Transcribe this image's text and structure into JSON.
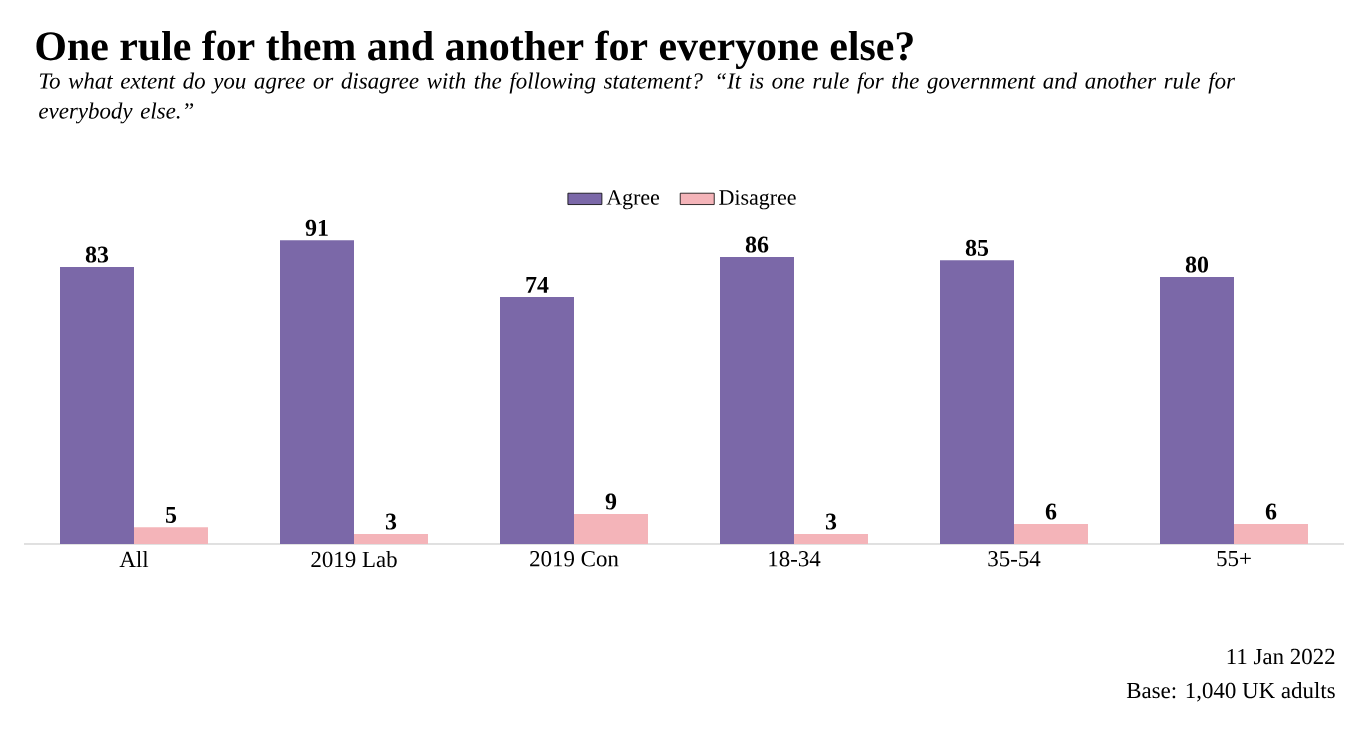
{
  "chart_data": {
    "type": "bar",
    "title": "One rule for them and another for everyone else?",
    "subtitle": "To what extent do you agree or disagree with the following statement? “It is one rule for the government and another rule for everybody else.”",
    "categories": [
      "All",
      "2019 Lab",
      "2019 Con",
      "18-34",
      "35-54",
      "55+"
    ],
    "series": [
      {
        "name": "Agree",
        "color": "#7b68a8",
        "values": [
          83,
          91,
          74,
          86,
          85,
          80
        ]
      },
      {
        "name": "Disagree",
        "color": "#f4b4b9",
        "values": [
          5,
          3,
          9,
          3,
          6,
          6
        ]
      }
    ],
    "tick_labels": "x",
    "data_labels": true,
    "legend": "top",
    "annotations": [
      "11 Jan 2022",
      "Base: 1,040 UK adults"
    ]
  }
}
